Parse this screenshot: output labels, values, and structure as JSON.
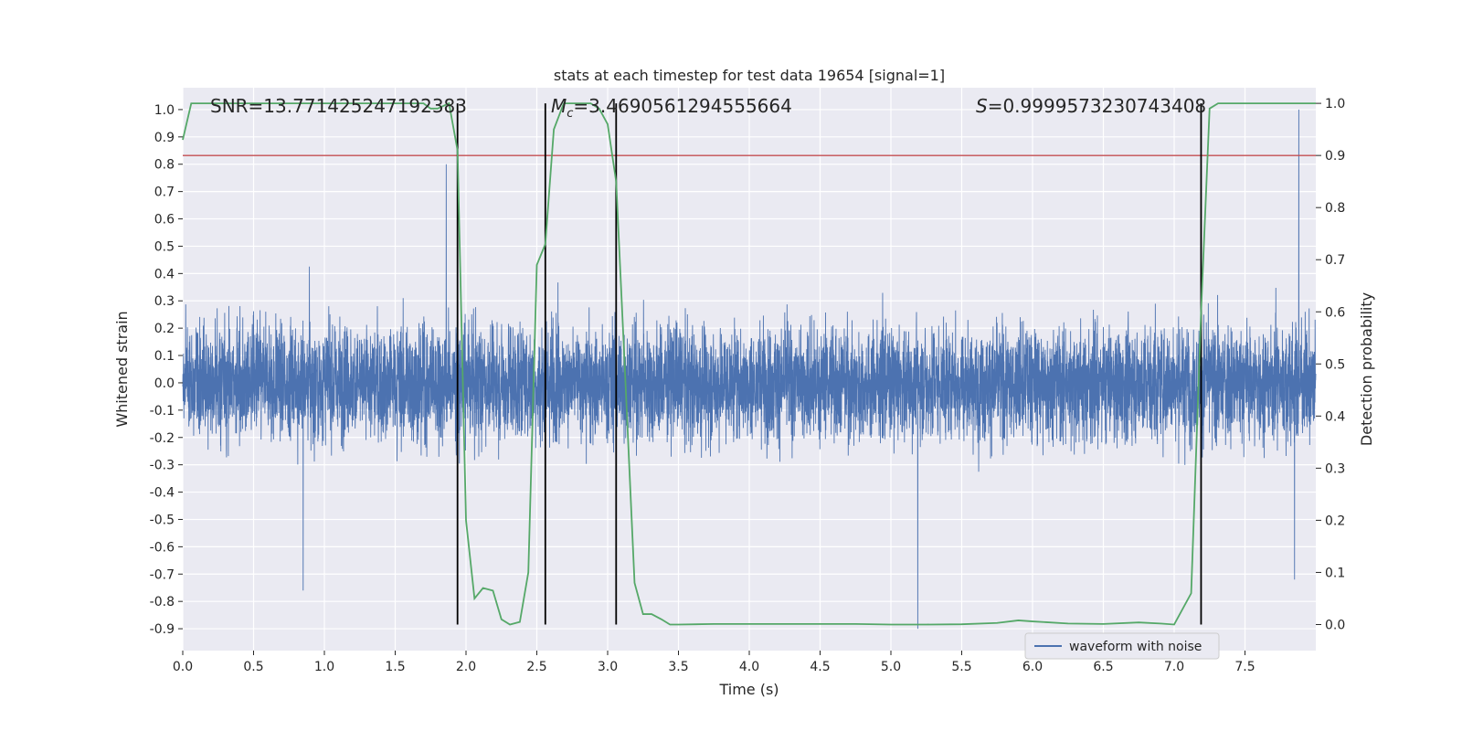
{
  "chart_data": {
    "type": "line",
    "title": "stats at each timestep for test data 19654 [signal=1]",
    "xlabel": "Time (s)",
    "ylabel_left": "Whitened strain",
    "ylabel_right": "Detection probability",
    "xlim": [
      0.0,
      8.0
    ],
    "ylim_left": [
      -0.98,
      1.08
    ],
    "ylim_right": [
      -0.05,
      1.03
    ],
    "x_ticks": [
      "0.0",
      "0.5",
      "1.0",
      "1.5",
      "2.0",
      "2.5",
      "3.0",
      "3.5",
      "4.0",
      "4.5",
      "5.0",
      "5.5",
      "6.0",
      "6.5",
      "7.0",
      "7.5"
    ],
    "y_ticks_left": [
      "1.0",
      "0.9",
      "0.8",
      "0.7",
      "0.6",
      "0.5",
      "0.4",
      "0.3",
      "0.2",
      "0.1",
      "0.0",
      "-0.1",
      "-0.2",
      "-0.3",
      "-0.4",
      "-0.5",
      "-0.6",
      "-0.7",
      "-0.8",
      "-0.9"
    ],
    "y_ticks_right": [
      "1.0",
      "0.9",
      "0.8",
      "0.7",
      "0.6",
      "0.5",
      "0.4",
      "0.3",
      "0.2",
      "0.1",
      "0.0"
    ],
    "grid": true,
    "legend": {
      "label": "waveform with noise",
      "position": "bottom-right"
    },
    "annotations": {
      "snr": "SNR=13.771425247192383",
      "mc_symbol": "M",
      "mc_sub": "c",
      "mc_value": "=3.4690561294555664",
      "s_symbol": "S",
      "s_value": "=0.9999573230743408"
    },
    "threshold": {
      "value_right": 0.9,
      "color": "#c44e52"
    },
    "event_lines_time": [
      1.94,
      2.56,
      3.06,
      7.19
    ],
    "series": [
      {
        "name": "waveform with noise",
        "axis": "left",
        "color": "#4c72b0",
        "description": "dense whitened strain noise sampled over 0-8 s",
        "sample_count": 8000,
        "typical_amplitude": 0.32,
        "peaks": [
          {
            "t": 1.86,
            "y": 0.8
          },
          {
            "t": 7.88,
            "y": 1.0
          },
          {
            "t": 5.19,
            "y": -0.9
          },
          {
            "t": 0.85,
            "y": -0.76
          },
          {
            "t": 7.85,
            "y": -0.72
          }
        ]
      },
      {
        "name": "detection probability",
        "axis": "right",
        "color": "#55a868",
        "x": [
          0.0,
          0.06,
          0.25,
          0.5,
          0.75,
          1.0,
          1.25,
          1.5,
          1.7,
          1.75,
          1.8,
          1.88,
          1.94,
          2.0,
          2.06,
          2.12,
          2.19,
          2.25,
          2.31,
          2.38,
          2.44,
          2.5,
          2.56,
          2.62,
          2.69,
          2.75,
          2.81,
          2.88,
          2.94,
          3.0,
          3.06,
          3.12,
          3.19,
          3.25,
          3.31,
          3.38,
          3.44,
          3.5,
          3.75,
          4.0,
          4.25,
          4.5,
          4.75,
          5.0,
          5.25,
          5.5,
          5.75,
          5.9,
          6.0,
          6.25,
          6.5,
          6.75,
          6.9,
          7.0,
          7.12,
          7.19,
          7.25,
          7.31,
          7.5,
          7.75,
          8.0
        ],
        "y": [
          0.93,
          1.0,
          1.0,
          1.0,
          1.0,
          1.0,
          1.0,
          1.0,
          1.0,
          0.99,
          0.99,
          1.0,
          0.91,
          0.2,
          0.05,
          0.07,
          0.065,
          0.01,
          0.0,
          0.005,
          0.1,
          0.69,
          0.73,
          0.95,
          1.0,
          1.0,
          1.0,
          1.0,
          0.99,
          0.96,
          0.85,
          0.5,
          0.08,
          0.02,
          0.02,
          0.01,
          0.0,
          0.0,
          0.001,
          0.001,
          0.001,
          0.001,
          0.001,
          0.0,
          0.0,
          0.0005,
          0.003,
          0.008,
          0.006,
          0.002,
          0.001,
          0.004,
          0.002,
          0.0,
          0.06,
          0.6,
          0.99,
          1.0,
          1.0,
          1.0,
          1.0
        ]
      }
    ]
  }
}
